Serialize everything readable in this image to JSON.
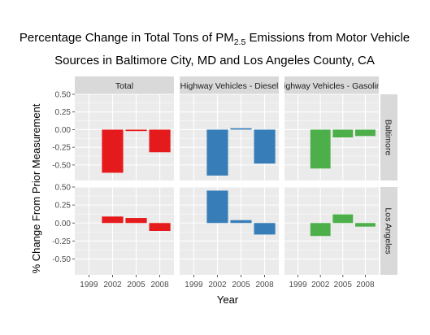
{
  "chart_data": {
    "type": "bar",
    "title": {
      "prefix": "Percentage Change in Total Tons of PM",
      "subscript": "2.5",
      "suffix": " Emissions from Motor Vehicle",
      "line2": "Sources in Baltimore City, MD and Los Angeles County, CA"
    },
    "xlabel": "Year",
    "ylabel": "% Change From Prior Measurement",
    "categories": [
      "1999",
      "2002",
      "2005",
      "2008"
    ],
    "columns": [
      "Total",
      "Highway Vehicles - Diesel",
      "Highway Vehicles - Gasoline"
    ],
    "rows": [
      "Baltimore",
      "Los Angeles"
    ],
    "ylim_rows": [
      [
        -0.72,
        0.5
      ],
      [
        -0.72,
        0.5
      ]
    ],
    "yticks": {
      "Baltimore": [
        "0.50",
        "0.25",
        "0.00",
        "-0.25",
        "-0.50"
      ],
      "Los Angeles": [
        "0.50",
        "0.25",
        "0.00",
        "-0.25",
        "-0.50"
      ]
    },
    "ytick_values": [
      0.5,
      0.25,
      0,
      -0.25,
      -0.5
    ],
    "colors": {
      "Total": "#e41a1c",
      "Highway Vehicles - Diesel": "#377eb8",
      "Highway Vehicles - Gasoline": "#4daf4a",
      "panel_bg": "#ebebeb",
      "strip_bg": "#d9d9d9",
      "grid": "#ffffff"
    },
    "panels": [
      {
        "row": "Baltimore",
        "column": "Total",
        "values": [
          null,
          -0.61,
          -0.02,
          -0.32
        ]
      },
      {
        "row": "Baltimore",
        "column": "Highway Vehicles - Diesel",
        "values": [
          null,
          -0.65,
          0.02,
          -0.48
        ]
      },
      {
        "row": "Baltimore",
        "column": "Highway Vehicles - Gasoline",
        "values": [
          null,
          -0.55,
          -0.11,
          -0.09
        ]
      },
      {
        "row": "Los Angeles",
        "column": "Total",
        "values": [
          null,
          0.09,
          0.07,
          -0.11
        ]
      },
      {
        "row": "Los Angeles",
        "column": "Highway Vehicles - Diesel",
        "values": [
          null,
          0.45,
          0.04,
          -0.16
        ]
      },
      {
        "row": "Los Angeles",
        "column": "Highway Vehicles - Gasoline",
        "values": [
          null,
          -0.18,
          0.12,
          -0.05
        ]
      }
    ],
    "grid": true,
    "legend": "none"
  }
}
